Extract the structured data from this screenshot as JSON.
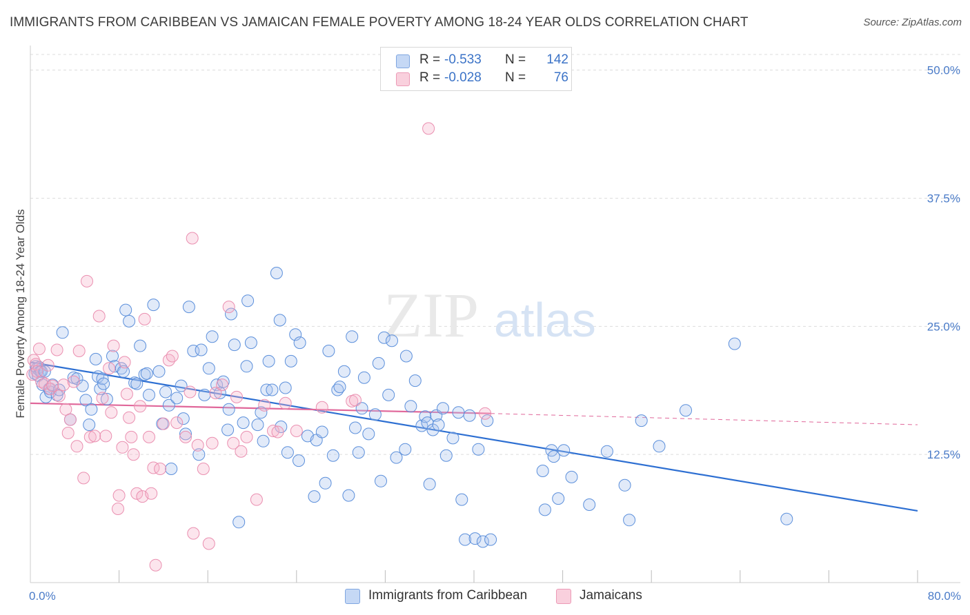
{
  "title": "IMMIGRANTS FROM CARIBBEAN VS JAMAICAN FEMALE POVERTY AMONG 18-24 YEAR OLDS CORRELATION CHART",
  "source": "Source: ZipAtlas.com",
  "watermark": {
    "zip": "ZIP",
    "atlas": "atlas"
  },
  "legend": {
    "rows": [
      {
        "r_label": "R =",
        "r_value": "-0.533",
        "n_label": "N =",
        "n_value": "142",
        "color": "#a9c4ef"
      },
      {
        "r_label": "R =",
        "r_value": "-0.028",
        "n_label": "N =",
        "n_value": "76",
        "color": "#f5b5ca"
      }
    ]
  },
  "bottom_legend": {
    "items": [
      {
        "label": "Immigrants from Caribbean",
        "color": "#a9c4ef"
      },
      {
        "label": "Jamaicans",
        "color": "#f5b5ca"
      }
    ]
  },
  "chart_data": {
    "type": "scatter",
    "title": "IMMIGRANTS FROM CARIBBEAN VS JAMAICAN FEMALE POVERTY AMONG 18-24 YEAR OLDS CORRELATION CHART",
    "xlabel": "",
    "ylabel": "Female Poverty Among 18-24 Year Olds",
    "xlim": [
      0,
      80
    ],
    "ylim": [
      0,
      52.4
    ],
    "x_tick_labels": [
      "0.0%",
      "80.0%"
    ],
    "y_ticks": [
      12.5,
      25.0,
      37.5,
      50.0
    ],
    "y_tick_labels": [
      "12.5%",
      "25.0%",
      "37.5%",
      "50.0%"
    ],
    "grid": "horizontal dashed",
    "legend_position": "top-center",
    "series": [
      {
        "name": "Immigrants from Caribbean",
        "color": "#5b8fdb",
        "fill": "rgba(169,196,239,0.35)",
        "trend": {
          "x": [
            0,
            80
          ],
          "y": [
            21.5,
            7.0
          ],
          "color": "#2d6fd2"
        },
        "points": [
          [
            0.4,
            20.4
          ],
          [
            0.5,
            21.1
          ],
          [
            0.6,
            20.9
          ],
          [
            0.7,
            20.2
          ],
          [
            0.8,
            21.0
          ],
          [
            0.9,
            20.6
          ],
          [
            1.0,
            20.6
          ],
          [
            1.1,
            19.3
          ],
          [
            1.3,
            20.6
          ],
          [
            1.4,
            18.1
          ],
          [
            1.7,
            18.9
          ],
          [
            1.8,
            18.6
          ],
          [
            2.0,
            19.3
          ],
          [
            2.4,
            18.3
          ],
          [
            2.6,
            18.8
          ],
          [
            2.9,
            24.4
          ],
          [
            3.6,
            15.9
          ],
          [
            3.9,
            20.0
          ],
          [
            4.2,
            19.9
          ],
          [
            4.7,
            19.2
          ],
          [
            5.0,
            17.8
          ],
          [
            5.3,
            15.4
          ],
          [
            5.5,
            16.9
          ],
          [
            5.9,
            21.8
          ],
          [
            6.1,
            20.1
          ],
          [
            6.3,
            18.9
          ],
          [
            6.5,
            19.9
          ],
          [
            6.6,
            19.4
          ],
          [
            6.9,
            17.9
          ],
          [
            7.4,
            22.1
          ],
          [
            7.6,
            21.1
          ],
          [
            8.2,
            20.9
          ],
          [
            8.4,
            20.6
          ],
          [
            8.6,
            26.6
          ],
          [
            8.9,
            25.5
          ],
          [
            9.4,
            19.5
          ],
          [
            9.6,
            19.4
          ],
          [
            9.9,
            23.1
          ],
          [
            10.3,
            20.3
          ],
          [
            10.5,
            20.4
          ],
          [
            10.7,
            18.3
          ],
          [
            11.1,
            27.1
          ],
          [
            11.6,
            20.6
          ],
          [
            11.9,
            15.5
          ],
          [
            12.2,
            18.6
          ],
          [
            12.5,
            17.3
          ],
          [
            12.7,
            11.1
          ],
          [
            13.2,
            18.0
          ],
          [
            13.6,
            19.2
          ],
          [
            13.8,
            16.0
          ],
          [
            14.0,
            14.5
          ],
          [
            14.3,
            26.9
          ],
          [
            14.7,
            22.6
          ],
          [
            15.2,
            12.5
          ],
          [
            15.4,
            22.7
          ],
          [
            15.7,
            18.3
          ],
          [
            16.1,
            20.9
          ],
          [
            16.4,
            24.0
          ],
          [
            16.8,
            19.3
          ],
          [
            17.1,
            18.5
          ],
          [
            17.4,
            19.6
          ],
          [
            17.8,
            14.9
          ],
          [
            17.9,
            16.9
          ],
          [
            18.1,
            26.2
          ],
          [
            18.4,
            23.2
          ],
          [
            18.8,
            5.9
          ],
          [
            19.2,
            15.6
          ],
          [
            19.5,
            21.1
          ],
          [
            19.6,
            27.5
          ],
          [
            19.9,
            23.4
          ],
          [
            20.5,
            15.4
          ],
          [
            20.8,
            16.6
          ],
          [
            21.0,
            13.8
          ],
          [
            21.3,
            18.8
          ],
          [
            21.5,
            21.6
          ],
          [
            21.8,
            18.8
          ],
          [
            22.2,
            30.2
          ],
          [
            22.5,
            25.6
          ],
          [
            22.6,
            15.2
          ],
          [
            23.0,
            19.0
          ],
          [
            23.2,
            12.7
          ],
          [
            23.5,
            21.6
          ],
          [
            23.9,
            24.2
          ],
          [
            24.2,
            11.9
          ],
          [
            24.3,
            23.4
          ],
          [
            25.0,
            14.3
          ],
          [
            25.6,
            8.4
          ],
          [
            25.8,
            13.9
          ],
          [
            26.3,
            14.7
          ],
          [
            26.6,
            9.7
          ],
          [
            26.9,
            22.6
          ],
          [
            27.3,
            12.4
          ],
          [
            27.7,
            18.8
          ],
          [
            27.9,
            19.1
          ],
          [
            28.3,
            20.6
          ],
          [
            28.7,
            8.5
          ],
          [
            29.0,
            24.0
          ],
          [
            29.3,
            15.1
          ],
          [
            29.6,
            12.7
          ],
          [
            29.9,
            17.0
          ],
          [
            30.1,
            20.0
          ],
          [
            30.5,
            14.5
          ],
          [
            31.1,
            16.4
          ],
          [
            31.4,
            21.4
          ],
          [
            31.6,
            9.9
          ],
          [
            31.9,
            23.9
          ],
          [
            32.3,
            18.3
          ],
          [
            32.6,
            23.6
          ],
          [
            33.0,
            12.2
          ],
          [
            33.8,
            13.0
          ],
          [
            33.9,
            22.1
          ],
          [
            34.3,
            17.2
          ],
          [
            34.7,
            19.7
          ],
          [
            35.3,
            15.3
          ],
          [
            35.6,
            16.2
          ],
          [
            35.8,
            15.6
          ],
          [
            36.0,
            9.6
          ],
          [
            36.3,
            14.9
          ],
          [
            36.6,
            16.3
          ],
          [
            36.8,
            15.4
          ],
          [
            37.2,
            17.0
          ],
          [
            37.5,
            12.4
          ],
          [
            38.1,
            14.1
          ],
          [
            38.6,
            16.6
          ],
          [
            38.9,
            8.1
          ],
          [
            39.2,
            4.2
          ],
          [
            39.6,
            16.3
          ],
          [
            40.1,
            4.3
          ],
          [
            40.4,
            13.0
          ],
          [
            40.8,
            4.0
          ],
          [
            41.2,
            15.8
          ],
          [
            41.5,
            4.2
          ],
          [
            46.2,
            10.9
          ],
          [
            46.4,
            7.1
          ],
          [
            47.0,
            12.9
          ],
          [
            47.2,
            12.3
          ],
          [
            47.6,
            8.2
          ],
          [
            48.1,
            12.9
          ],
          [
            48.8,
            10.3
          ],
          [
            50.4,
            7.6
          ],
          [
            52.0,
            12.8
          ],
          [
            53.6,
            9.5
          ],
          [
            54.0,
            6.1
          ],
          [
            55.1,
            15.8
          ],
          [
            56.7,
            13.3
          ],
          [
            59.1,
            16.8
          ],
          [
            63.5,
            23.3
          ],
          [
            68.2,
            6.2
          ]
        ]
      },
      {
        "name": "Jamaicans",
        "color": "#ea8fb0",
        "fill": "rgba(245,181,202,0.35)",
        "trend": {
          "x": [
            0,
            41.5
          ],
          "y": [
            17.5,
            16.5
          ],
          "color": "#e0679a",
          "dashed_extension": {
            "x": [
              41.5,
              80
            ],
            "y": [
              16.5,
              15.4
            ]
          }
        },
        "points": [
          [
            0.2,
            20.3
          ],
          [
            0.3,
            21.7
          ],
          [
            0.5,
            21.3
          ],
          [
            0.6,
            20.6
          ],
          [
            0.8,
            22.8
          ],
          [
            1.0,
            19.6
          ],
          [
            1.3,
            19.4
          ],
          [
            1.6,
            21.2
          ],
          [
            1.8,
            18.9
          ],
          [
            2.0,
            19.2
          ],
          [
            2.4,
            22.7
          ],
          [
            2.6,
            18.2
          ],
          [
            3.0,
            19.3
          ],
          [
            3.2,
            16.9
          ],
          [
            3.4,
            14.6
          ],
          [
            3.6,
            15.9
          ],
          [
            3.9,
            19.6
          ],
          [
            4.2,
            13.3
          ],
          [
            4.4,
            22.6
          ],
          [
            4.8,
            10.2
          ],
          [
            5.1,
            29.4
          ],
          [
            5.4,
            14.2
          ],
          [
            5.8,
            14.3
          ],
          [
            6.2,
            26.0
          ],
          [
            6.5,
            18.0
          ],
          [
            6.8,
            14.3
          ],
          [
            7.1,
            20.9
          ],
          [
            7.3,
            16.6
          ],
          [
            7.5,
            23.1
          ],
          [
            7.9,
            7.2
          ],
          [
            8.0,
            8.5
          ],
          [
            8.3,
            13.2
          ],
          [
            8.5,
            21.5
          ],
          [
            8.7,
            18.4
          ],
          [
            8.9,
            16.1
          ],
          [
            9.1,
            14.2
          ],
          [
            9.3,
            12.5
          ],
          [
            9.6,
            8.7
          ],
          [
            9.9,
            17.2
          ],
          [
            10.1,
            8.4
          ],
          [
            10.3,
            25.7
          ],
          [
            10.7,
            14.2
          ],
          [
            10.9,
            8.7
          ],
          [
            11.1,
            11.2
          ],
          [
            11.3,
            1.7
          ],
          [
            11.7,
            11.1
          ],
          [
            12.0,
            15.5
          ],
          [
            12.5,
            21.7
          ],
          [
            12.8,
            22.1
          ],
          [
            13.2,
            15.6
          ],
          [
            14.0,
            14.2
          ],
          [
            14.4,
            18.6
          ],
          [
            14.6,
            33.6
          ],
          [
            14.7,
            4.8
          ],
          [
            15.1,
            13.4
          ],
          [
            15.6,
            11.1
          ],
          [
            16.1,
            3.8
          ],
          [
            16.4,
            13.6
          ],
          [
            16.7,
            18.5
          ],
          [
            17.3,
            19.3
          ],
          [
            17.9,
            26.9
          ],
          [
            18.3,
            13.6
          ],
          [
            18.6,
            18.1
          ],
          [
            19.0,
            12.8
          ],
          [
            19.5,
            14.2
          ],
          [
            20.4,
            8.1
          ],
          [
            21.1,
            17.3
          ],
          [
            21.9,
            14.8
          ],
          [
            22.3,
            14.7
          ],
          [
            23.0,
            17.5
          ],
          [
            24.0,
            14.8
          ],
          [
            26.3,
            17.1
          ],
          [
            29.0,
            17.7
          ],
          [
            29.3,
            17.8
          ],
          [
            35.9,
            44.3
          ],
          [
            41.0,
            16.5
          ]
        ]
      }
    ]
  }
}
